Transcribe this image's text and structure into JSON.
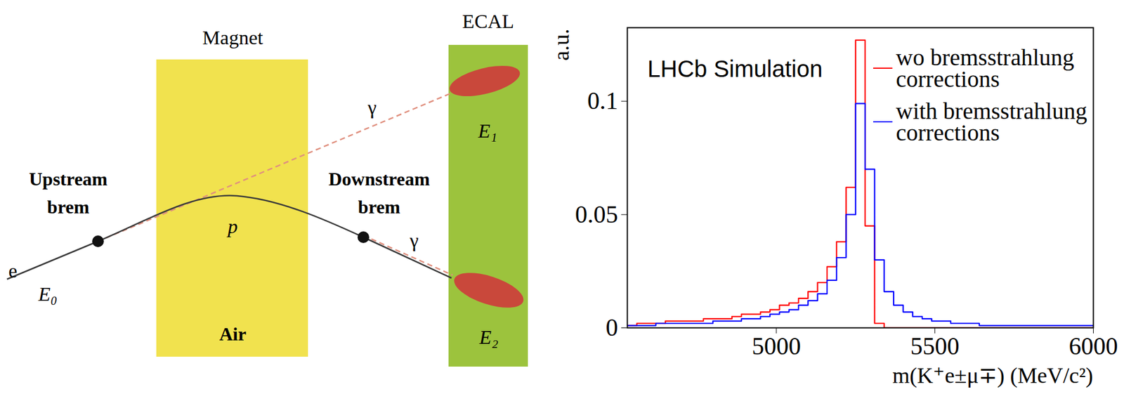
{
  "diagram": {
    "labels": {
      "magnet": "Magnet",
      "ecal": "ECAL",
      "air": "Air",
      "upstream": "Upstream brem",
      "downstream": "Downstream brem",
      "electron": "e",
      "momentum": "p",
      "photon_upstream": "γ",
      "photon_downstream": "γ",
      "e0": "E₀",
      "e1": "E₁",
      "e2": "E₂"
    }
  },
  "chart_data": {
    "type": "histogram",
    "xlabel": "m(K⁺e±μ∓) (MeV/c²)",
    "ylabel": "a.u.",
    "annotations": [
      "LHCb Simulation"
    ],
    "bins": [
      4530,
      4560,
      4590,
      4620,
      4650,
      4680,
      4710,
      4740,
      4770,
      4800,
      4830,
      4860,
      4890,
      4920,
      4950,
      4980,
      5010,
      5040,
      5070,
      5100,
      5130,
      5160,
      5190,
      5220,
      5250,
      5280,
      5310,
      5340,
      5370,
      5400,
      5430,
      5460,
      5490,
      5520,
      5550,
      5580,
      5610,
      5640,
      5670,
      5700,
      5730,
      5760,
      5790,
      5820,
      5850,
      5880,
      5910,
      5940,
      5970,
      6000
    ],
    "series": [
      {
        "name": "wo bremsstrahlung corrections",
        "color": "#ff0000",
        "values": [
          0.001,
          0.002,
          0.002,
          0.002,
          0.003,
          0.003,
          0.003,
          0.003,
          0.004,
          0.004,
          0.004,
          0.005,
          0.006,
          0.006,
          0.007,
          0.008,
          0.01,
          0.011,
          0.013,
          0.016,
          0.02,
          0.027,
          0.038,
          0.062,
          0.127,
          0.045,
          0.002,
          0,
          0,
          0,
          0,
          0,
          0,
          0,
          0,
          0,
          0,
          0,
          0,
          0,
          0,
          0,
          0,
          0,
          0,
          0,
          0,
          0,
          0
        ]
      },
      {
        "name": "with bremsstrahlung corrections",
        "color": "#0000ff",
        "values": [
          0.001,
          0.001,
          0.001,
          0.002,
          0.002,
          0.002,
          0.002,
          0.002,
          0.002,
          0.003,
          0.003,
          0.003,
          0.004,
          0.004,
          0.005,
          0.006,
          0.007,
          0.008,
          0.01,
          0.012,
          0.015,
          0.021,
          0.031,
          0.05,
          0.099,
          0.07,
          0.03,
          0.016,
          0.01,
          0.007,
          0.005,
          0.004,
          0.003,
          0.003,
          0.002,
          0.002,
          0.002,
          0.001,
          0.001,
          0.001,
          0.001,
          0.001,
          0.001,
          0.001,
          0.001,
          0.001,
          0.001,
          0.001,
          0.001
        ]
      }
    ],
    "xlim": [
      4530,
      6000
    ],
    "ylim": [
      0,
      0.1325
    ],
    "xticks": [
      5000,
      5500,
      6000
    ],
    "yticks": [
      0,
      0.05,
      0.1
    ],
    "legend": "top-right"
  }
}
